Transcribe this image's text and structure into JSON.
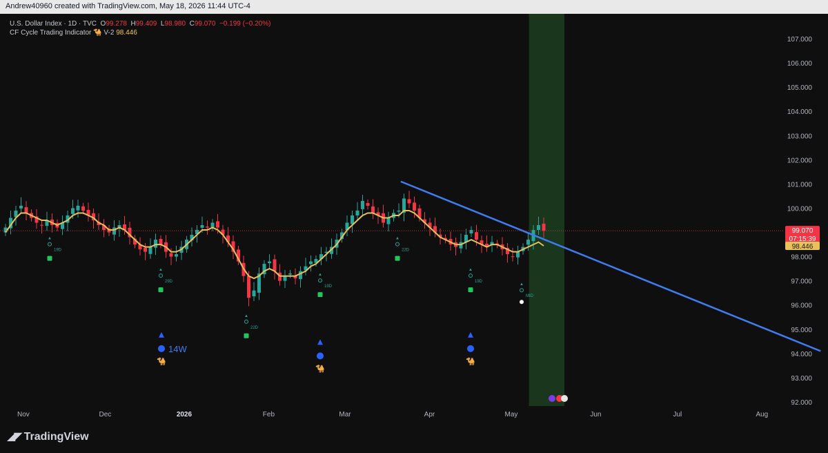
{
  "header": {
    "credit": "Andrew40960 created with TradingView.com, May 18, 2026 11:44 UTC-4"
  },
  "legend": {
    "symbol": "U.S. Dollar Index · 1D · TVC",
    "o_label": "O",
    "o_value": "99.278",
    "h_label": "H",
    "h_value": "99.409",
    "l_label": "L",
    "l_value": "98.980",
    "c_label": "C",
    "c_value": "99.070",
    "change": "−0.199 (−0.20%)",
    "indicator_name": "CF Cycle Trading Indicator",
    "indicator_icon": "camel-icon",
    "indicator_version": "V-2",
    "indicator_value": "98.446"
  },
  "colors": {
    "background": "#0f0f0f",
    "up": "#26a69a",
    "down": "#f23645",
    "ma": "#e8c15a",
    "trendline": "#3d7df0",
    "band": "#1c3b1f",
    "marker_blue": "#2962ff"
  },
  "logo": {
    "text": "TradingView"
  },
  "chart_data": {
    "type": "candlestick",
    "x_axis_labels": [
      "Nov",
      "Dec",
      "2026",
      "Feb",
      "Mar",
      "Apr",
      "May",
      "Jun",
      "Jul",
      "Aug"
    ],
    "y_axis": {
      "min": 92,
      "max": 107,
      "ticks": [
        "92.000",
        "93.000",
        "94.000",
        "95.000",
        "96.000",
        "97.000",
        "98.000",
        "99.000",
        "100.000",
        "101.000",
        "102.000",
        "103.000",
        "104.000",
        "105.000",
        "106.000",
        "107.000"
      ]
    },
    "last_price": {
      "value": "99.070",
      "countdown": "07:15:39"
    },
    "indicator_last": "98.446",
    "close_series": [
      99.2,
      99.6,
      99.9,
      100.1,
      99.8,
      99.6,
      99.4,
      99.3,
      99.5,
      99.3,
      99.2,
      99.4,
      99.7,
      100.0,
      100.1,
      99.9,
      99.7,
      99.5,
      99.3,
      99.1,
      99.0,
      99.2,
      99.3,
      99.1,
      98.8,
      98.5,
      98.3,
      98.2,
      98.4,
      98.7,
      98.5,
      98.2,
      98.0,
      98.1,
      98.4,
      98.7,
      98.9,
      99.1,
      99.3,
      99.2,
      99.4,
      99.2,
      98.9,
      98.6,
      98.2,
      97.8,
      97.2,
      96.3,
      96.6,
      97.3,
      97.7,
      97.8,
      97.4,
      97.0,
      97.2,
      97.3,
      97.1,
      97.4,
      97.6,
      97.8,
      97.9,
      98.1,
      98.2,
      98.4,
      98.7,
      99.0,
      99.4,
      99.7,
      99.9,
      100.3,
      100.1,
      99.8,
      99.7,
      99.4,
      99.6,
      99.8,
      99.9,
      100.4,
      100.2,
      99.9,
      99.6,
      99.4,
      99.2,
      99.0,
      98.8,
      98.7,
      98.5,
      98.4,
      98.6,
      98.9,
      99.1,
      98.7,
      98.5,
      98.4,
      98.6,
      98.5,
      98.3,
      98.1,
      98.0,
      98.2,
      98.4,
      98.7,
      99.1,
      99.3,
      99.07
    ],
    "ma_series": [
      99.0,
      99.3,
      99.6,
      99.8,
      99.8,
      99.7,
      99.6,
      99.5,
      99.5,
      99.4,
      99.3,
      99.4,
      99.5,
      99.7,
      99.8,
      99.8,
      99.7,
      99.6,
      99.4,
      99.3,
      99.1,
      99.1,
      99.2,
      99.1,
      98.9,
      98.7,
      98.5,
      98.4,
      98.4,
      98.5,
      98.5,
      98.4,
      98.2,
      98.2,
      98.3,
      98.5,
      98.7,
      98.9,
      99.1,
      99.1,
      99.2,
      99.1,
      98.9,
      98.6,
      98.3,
      97.9,
      97.5,
      97.2,
      97.1,
      97.2,
      97.4,
      97.5,
      97.4,
      97.2,
      97.2,
      97.2,
      97.2,
      97.3,
      97.4,
      97.6,
      97.7,
      97.9,
      98.1,
      98.3,
      98.5,
      98.8,
      99.1,
      99.3,
      99.5,
      99.7,
      99.8,
      99.8,
      99.7,
      99.6,
      99.6,
      99.7,
      99.7,
      99.9,
      99.9,
      99.8,
      99.6,
      99.4,
      99.2,
      99.0,
      98.8,
      98.7,
      98.6,
      98.5,
      98.5,
      98.6,
      98.7,
      98.6,
      98.5,
      98.4,
      98.5,
      98.5,
      98.4,
      98.3,
      98.2,
      98.2,
      98.3,
      98.4,
      98.5,
      98.6,
      98.446
    ],
    "cycle_labels": [
      "19D",
      "29D",
      "22D",
      "19D",
      "22D",
      "19D",
      "MID"
    ],
    "weekly_label": "14W",
    "trendline": {
      "from": {
        "date": "2026-03-23",
        "value": 101.1
      },
      "to": {
        "date": "2026-08-24",
        "value": 94.1
      }
    },
    "highlight_band": {
      "from": "2026-05-09",
      "to": "2026-05-22"
    }
  }
}
